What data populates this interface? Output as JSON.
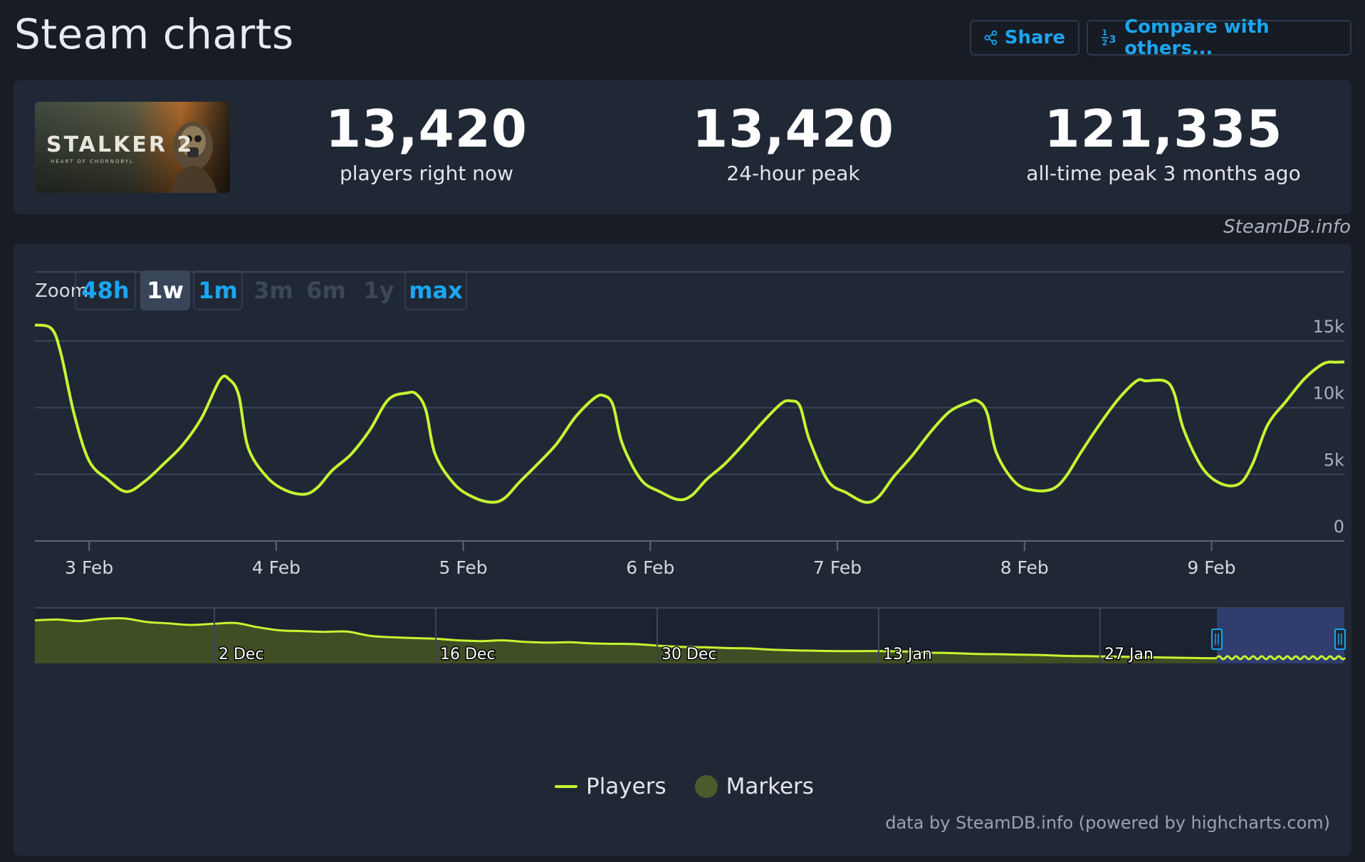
{
  "header": {
    "title": "Steam charts",
    "share_label": "Share",
    "compare_label": "Compare with others...",
    "compare_icon": "1/2/3",
    "share_icon": "share-icon"
  },
  "game": {
    "cover_text": "STALKER 2",
    "cover_subtext": "HEART OF CHORNOBYL"
  },
  "stats": [
    {
      "value": "13,420",
      "label": "players right now"
    },
    {
      "value": "13,420",
      "label": "24-hour peak"
    },
    {
      "value": "121,335",
      "label": "all-time peak 3 months ago"
    }
  ],
  "source": "SteamDB.info",
  "zoom": {
    "label": "Zoom",
    "options": [
      {
        "label": "48h",
        "state": "enabled"
      },
      {
        "label": "1w",
        "state": "active"
      },
      {
        "label": "1m",
        "state": "enabled"
      },
      {
        "label": "3m",
        "state": "disabled"
      },
      {
        "label": "6m",
        "state": "disabled"
      },
      {
        "label": "1y",
        "state": "disabled"
      },
      {
        "label": "max",
        "state": "enabled"
      }
    ]
  },
  "legend": {
    "players": "Players",
    "markers": "Markers"
  },
  "credit": "data by SteamDB.info (powered by highcharts.com)",
  "colors": {
    "line": "#c6f531",
    "marker": "#4a5b2c",
    "link": "#1aa6f0",
    "background": "#202836"
  },
  "chart_data": {
    "type": "line",
    "series": [
      {
        "name": "Players"
      }
    ],
    "ylim": [
      0,
      17500
    ],
    "yticks": [
      0,
      5000,
      10000,
      15000
    ],
    "ytick_labels": [
      "0",
      "5k",
      "10k",
      "15k"
    ],
    "xtick_labels": [
      "3 Feb",
      "4 Feb",
      "5 Feb",
      "6 Feb",
      "7 Feb",
      "8 Feb",
      "9 Feb"
    ],
    "xlim_days": [
      2.71,
      9.71
    ],
    "x_days": [
      2.71,
      2.8,
      2.85,
      2.92,
      3.0,
      3.1,
      3.2,
      3.3,
      3.4,
      3.5,
      3.6,
      3.7,
      3.75,
      3.8,
      3.85,
      3.95,
      4.05,
      4.15,
      4.22,
      4.3,
      4.4,
      4.5,
      4.6,
      4.7,
      4.75,
      4.8,
      4.85,
      4.95,
      5.05,
      5.15,
      5.22,
      5.3,
      5.4,
      5.5,
      5.6,
      5.7,
      5.75,
      5.8,
      5.85,
      5.95,
      6.05,
      6.15,
      6.22,
      6.3,
      6.4,
      6.5,
      6.6,
      6.7,
      6.75,
      6.8,
      6.85,
      6.95,
      7.05,
      7.15,
      7.22,
      7.3,
      7.4,
      7.5,
      7.6,
      7.7,
      7.75,
      7.8,
      7.85,
      7.95,
      8.05,
      8.15,
      8.22,
      8.3,
      8.4,
      8.5,
      8.6,
      8.65,
      8.75,
      8.8,
      8.85,
      8.95,
      9.05,
      9.15,
      9.22,
      9.3,
      9.4,
      9.5,
      9.6,
      9.67,
      9.71
    ],
    "y_players": [
      16200,
      15900,
      14000,
      9500,
      6000,
      4600,
      3700,
      4500,
      5800,
      7200,
      9200,
      12100,
      12100,
      10900,
      7000,
      4800,
      3800,
      3500,
      4000,
      5300,
      6500,
      8300,
      10600,
      11100,
      11000,
      9800,
      6500,
      4300,
      3300,
      2900,
      3200,
      4400,
      5800,
      7300,
      9300,
      10700,
      10900,
      10200,
      7300,
      4600,
      3700,
      3100,
      3400,
      4600,
      5800,
      7300,
      8900,
      10300,
      10500,
      10100,
      7600,
      4500,
      3600,
      2900,
      3300,
      4800,
      6400,
      8200,
      9700,
      10400,
      10500,
      9600,
      6600,
      4400,
      3800,
      3900,
      4800,
      6600,
      8700,
      10600,
      12000,
      12000,
      12000,
      11100,
      8400,
      5500,
      4300,
      4300,
      5800,
      8700,
      10500,
      12200,
      13300,
      13400,
      13420
    ],
    "navigator": {
      "xtick_labels": [
        "2 Dec",
        "16 Dec",
        "30 Dec",
        "13 Jan",
        "27 Jan"
      ],
      "y_players": [
        112000,
        114000,
        110000,
        116000,
        117000,
        108000,
        104000,
        100000,
        103000,
        105000,
        94000,
        86000,
        84000,
        82000,
        83000,
        72000,
        68000,
        66000,
        64000,
        60000,
        58000,
        60000,
        56000,
        54000,
        55000,
        52000,
        51000,
        50000,
        46000,
        43000,
        42000,
        40000,
        39000,
        36000,
        34000,
        33000,
        32000,
        32000,
        32000,
        31000,
        28000,
        27000,
        25000,
        24000,
        23000,
        22000,
        20000,
        19000,
        18000,
        17000,
        16000,
        15000,
        14000,
        13420
      ],
      "ylim": [
        0,
        130000
      ]
    }
  }
}
